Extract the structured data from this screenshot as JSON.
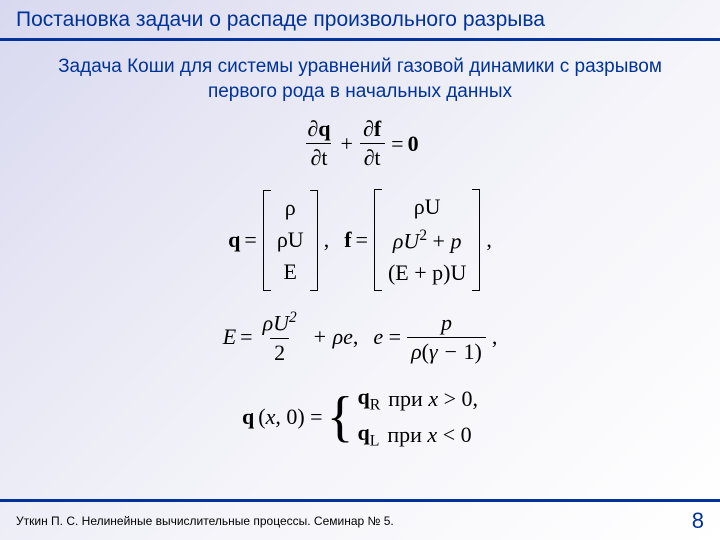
{
  "colors": {
    "accent": "#003399",
    "text": "#000000",
    "footer_text": "#000000"
  },
  "title": "Постановка задачи о распаде произвольного разрыва",
  "subtitle": "Задача Коши для системы уравнений газовой динамики с разрывом первого рода в начальных данных",
  "eq1": {
    "t1_num": "∂q",
    "t1_den": "∂t",
    "t2_num": "∂f",
    "t2_den": "∂t",
    "rhs": "0"
  },
  "eq2": {
    "q": "q",
    "eqs": "=",
    "q_vec": [
      "ρ",
      "ρU",
      "E"
    ],
    "f": "f",
    "f_vec": [
      "ρU",
      "ρU² + p",
      "(E + p)U"
    ]
  },
  "eq3": {
    "E": "E",
    "eqs": "=",
    "t1_num": "ρU²",
    "t1_den": "2",
    "plus": "+ ρe,",
    "e": "e =",
    "t2_num": "p",
    "t2_den": "ρ(γ − 1)"
  },
  "eq4": {
    "lhs": "q",
    "args": "(x, 0) =",
    "r1_q": "q",
    "r1_sub": "R",
    "r1_cond": "при x > 0,",
    "r2_q": "q",
    "r2_sub": "L",
    "r2_cond": "при x < 0"
  },
  "footer": {
    "text": "Уткин П. С. Нелинейные вычислительные процессы. Семинар № 5.",
    "page": "8"
  }
}
